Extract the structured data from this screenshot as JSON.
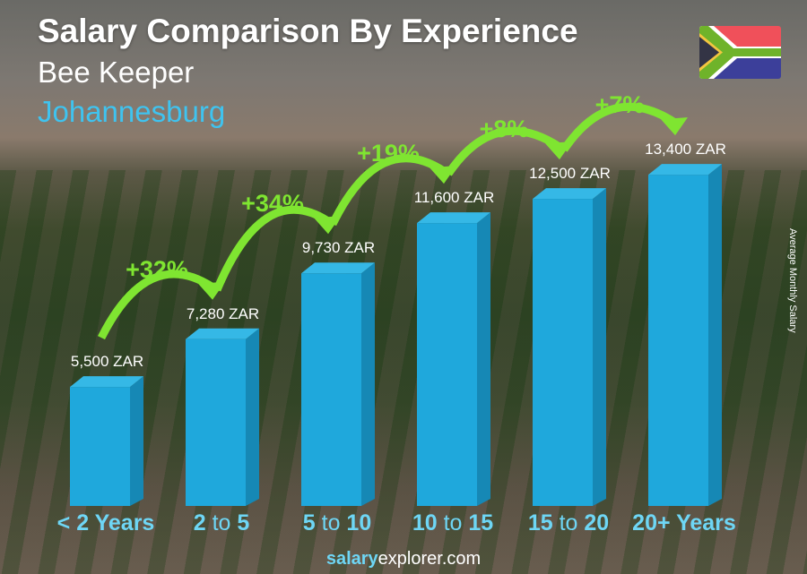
{
  "title": "Salary Comparison By Experience",
  "subtitle": "Bee Keeper",
  "location": "Johannesburg",
  "flag": "south-africa-flag",
  "footer": {
    "brand": "salary",
    "rest": "explorer.com"
  },
  "colors": {
    "bar": "#1fa8dc",
    "bar_side": "#1688b5",
    "accent": "#7fe531",
    "label": "#6ed6f5"
  },
  "chart_data": {
    "type": "bar",
    "ylabel": "Average Monthly Salary",
    "categories": [
      "< 2 Years",
      "2 to 5",
      "5 to 10",
      "10 to 15",
      "15 to 20",
      "20+ Years"
    ],
    "category_parts": [
      [
        "< 2 Years",
        "",
        ""
      ],
      [
        "2",
        " to ",
        "5"
      ],
      [
        "5",
        " to ",
        "10"
      ],
      [
        "10",
        " to ",
        "15"
      ],
      [
        "15",
        " to ",
        "20"
      ],
      [
        "20+ Years",
        "",
        ""
      ]
    ],
    "values": [
      5500,
      7280,
      9730,
      11600,
      12500,
      13400
    ],
    "value_labels": [
      "5,500 ZAR",
      "7,280 ZAR",
      "9,730 ZAR",
      "11,600 ZAR",
      "12,500 ZAR",
      "13,400 ZAR"
    ],
    "changes": [
      "+32%",
      "+34%",
      "+19%",
      "+8%",
      "+7%"
    ],
    "unit": "ZAR"
  }
}
